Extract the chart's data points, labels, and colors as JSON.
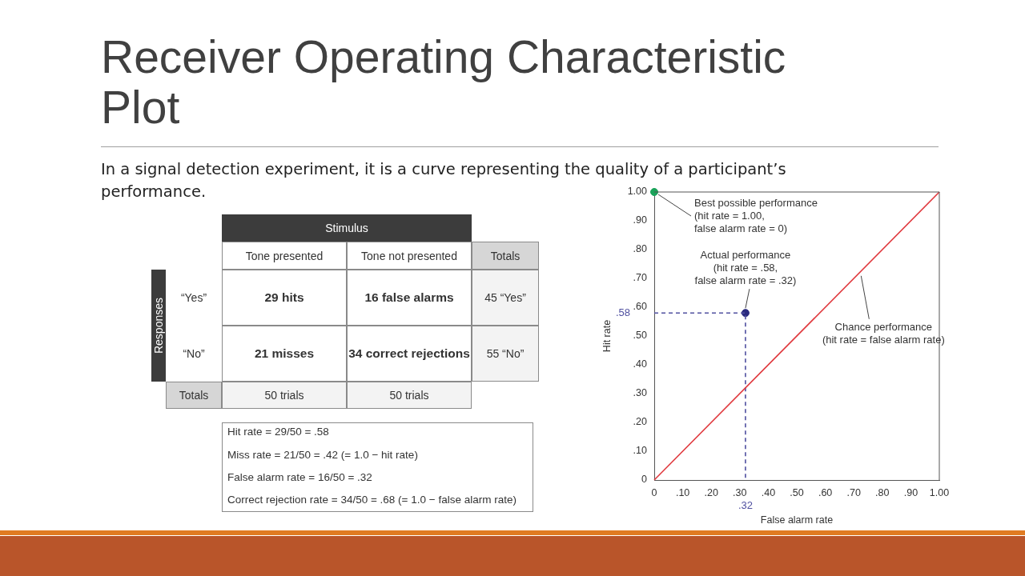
{
  "chart_data": [
    {
      "type": "other",
      "title": "Receiver Operating Characteristic Plot",
      "subtitle": "In a signal detection experiment, it is a curve representing the quality of a participant’s performance.",
      "annotations": [
        "Stimulus",
        "Tone presented",
        "Tone not presented",
        "Totals",
        "Responses",
        "“Yes”",
        "29 hits",
        "16 false alarms",
        "45 “Yes”",
        "“No”",
        "21 misses",
        "34 correct rejections",
        "55 “No”",
        "Totals",
        "50 trials",
        "50 trials",
        "Hit rate = 29/50 = .58",
        "Miss rate = 21/50 = .42 (= 1.0 − hit rate)",
        "False alarm rate = 16/50 = .32",
        "Correct rejection rate = 34/50 = .68 (= 1.0 − false alarm rate)"
      ]
    },
    {
      "type": "scatter",
      "xlabel": "False alarm rate",
      "ylabel": "Hit rate",
      "xlim": [
        0,
        1
      ],
      "ylim": [
        0,
        1
      ],
      "xticks": [
        0,
        {
          "value": 0.1,
          "label": ".10"
        },
        {
          "value": 0.2,
          "label": ".20"
        },
        {
          "value": 0.3,
          "label": ".30"
        },
        {
          "value": 0.4,
          "label": ".40"
        },
        {
          "value": 0.5,
          "label": ".50"
        },
        {
          "value": 0.6,
          "label": ".60"
        },
        {
          "value": 0.7,
          "label": ".70"
        },
        {
          "value": 0.8,
          "label": ".80"
        },
        {
          "value": 0.9,
          "label": ".90"
        },
        {
          "value": 1,
          "label": "1.00"
        }
      ],
      "yticks": [
        0,
        {
          "value": 0.1,
          "label": ".10"
        },
        {
          "value": 0.2,
          "label": ".20"
        },
        {
          "value": 0.3,
          "label": ".30"
        },
        {
          "value": 0.4,
          "label": ".40"
        },
        {
          "value": 0.5,
          "label": ".50"
        },
        {
          "value": 0.6,
          "label": ".60"
        },
        {
          "value": 0.7,
          "label": ".70"
        },
        {
          "value": 0.8,
          "label": ".80"
        },
        {
          "value": 0.9,
          "label": ".90"
        },
        {
          "value": 1,
          "label": "1.00"
        }
      ],
      "series": [
        {
          "type": "line",
          "x": [
            0,
            1
          ],
          "values": [
            0,
            1
          ],
          "color": "#e0393e",
          "marker": "none",
          "line_style": "solid"
        },
        {
          "type": "line",
          "x": [
            0,
            0.32,
            0.32
          ],
          "values": [
            0.58,
            0.58,
            0
          ],
          "color": "#5050a0",
          "marker": "none",
          "line_style": "dashed"
        },
        {
          "type": "scatter",
          "x": [
            0
          ],
          "values": [
            1
          ],
          "color": "#1aa35a",
          "marker": "circle"
        },
        {
          "type": "scatter",
          "x": [
            0.32
          ],
          "values": [
            0.58
          ],
          "color": "#2b2b80",
          "marker": "circle"
        }
      ],
      "annotations": [
        {
          "text": "Best possible performance\n(hit rate = 1.00,\nfalse alarm rate = 0)",
          "x": 0,
          "y": 1
        },
        {
          "text": "Actual performance\n(hit rate = .58,\nfalse alarm rate = .32)",
          "x": 0.32,
          "y": 0.58
        },
        {
          "text": "Chance performance\n(hit rate = false alarm rate)",
          "x": 0.72,
          "y": 0.72
        },
        {
          "text": ".58",
          "x": 0,
          "y": 0.58
        },
        {
          "text": ".32",
          "x": 0.32,
          "y": 0
        }
      ]
    }
  ]
}
